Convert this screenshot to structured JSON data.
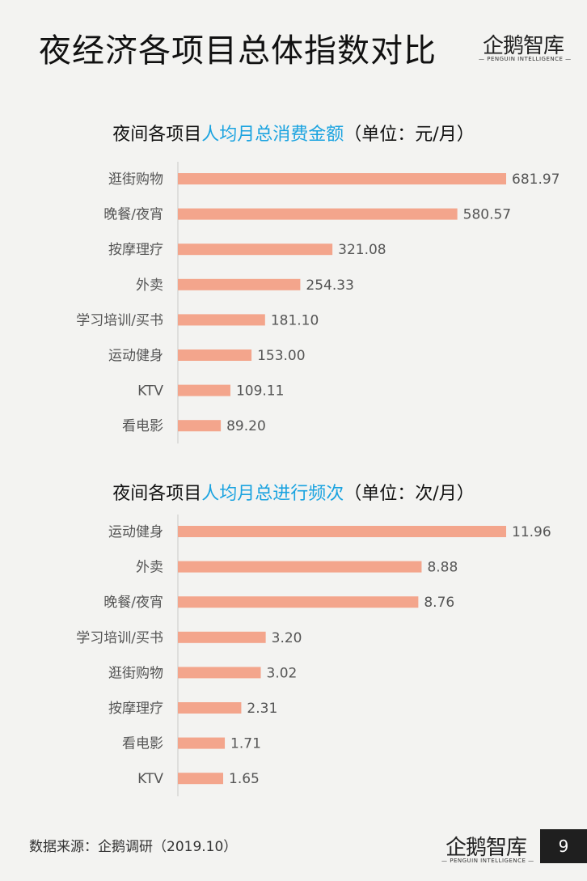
{
  "page": {
    "title": "夜经济各项目总体指数对比",
    "source": "数据来源：企鹅调研（2019.10）",
    "page_number": "9"
  },
  "logo": {
    "name": "企鹅智库",
    "subtitle": "— PENGUIN INTELLIGENCE —"
  },
  "colors": {
    "bar": "#f3a58c",
    "highlight": "#1aa3e0",
    "axis": "#c8c8c8"
  },
  "chart_data": [
    {
      "type": "bar",
      "orientation": "horizontal",
      "title_prefix": "夜间各项目",
      "title_highlight": "人均月总消费金额",
      "title_suffix": "（单位：元/月）",
      "categories": [
        "逛街购物",
        "晚餐/夜宵",
        "按摩理疗",
        "外卖",
        "学习培训/买书",
        "运动健身",
        "KTV",
        "看电影"
      ],
      "values": [
        681.97,
        580.57,
        321.08,
        254.33,
        181.1,
        153.0,
        109.11,
        89.2
      ],
      "value_labels": [
        "681.97",
        "580.57",
        "321.08",
        "254.33",
        "181.10",
        "153.00",
        "109.11",
        "89.20"
      ],
      "xlim": [
        0,
        681.97
      ]
    },
    {
      "type": "bar",
      "orientation": "horizontal",
      "title_prefix": "夜间各项目",
      "title_highlight": "人均月总进行频次",
      "title_suffix": "（单位：次/月）",
      "categories": [
        "运动健身",
        "外卖",
        "晚餐/夜宵",
        "学习培训/买书",
        "逛街购物",
        "按摩理疗",
        "看电影",
        "KTV"
      ],
      "values": [
        11.96,
        8.88,
        8.76,
        3.2,
        3.02,
        2.31,
        1.71,
        1.65
      ],
      "value_labels": [
        "11.96",
        "8.88",
        "8.76",
        "3.20",
        "3.02",
        "2.31",
        "1.71",
        "1.65"
      ],
      "xlim": [
        0,
        11.96
      ]
    }
  ]
}
